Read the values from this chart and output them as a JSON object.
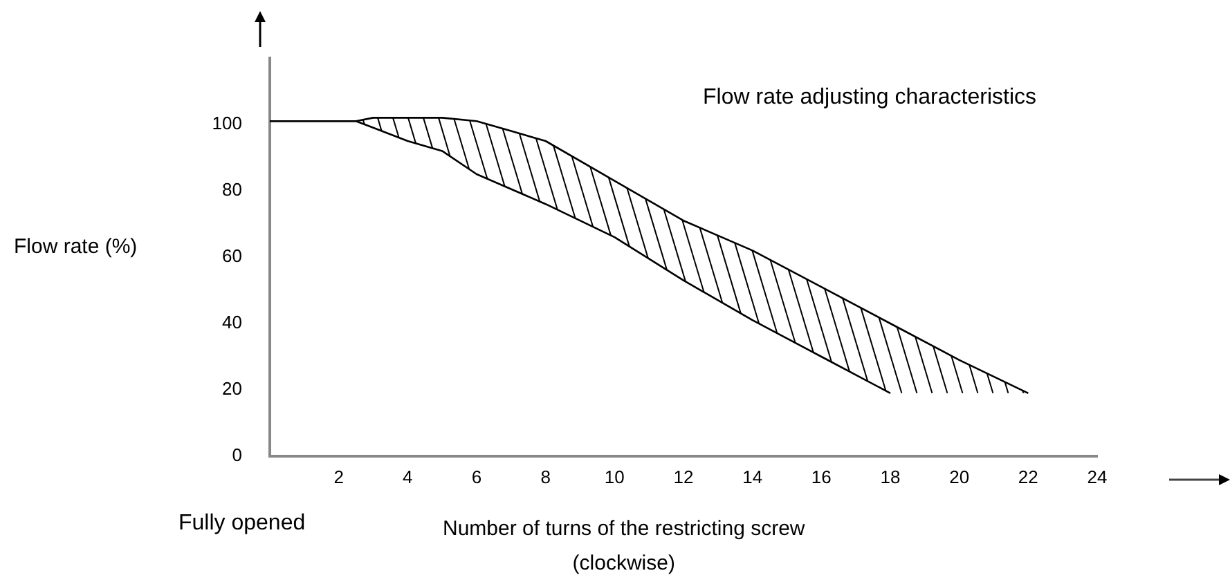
{
  "chart_data": {
    "type": "line",
    "title": "Flow rate adjusting characteristics",
    "xlabel": "Number of turns of the restricting screw\n(clockwise)",
    "ylabel": "Flow rate (%)",
    "annotations": [
      "Fully opened"
    ],
    "xlim": [
      0,
      24
    ],
    "xticks": [
      2,
      4,
      6,
      8,
      10,
      12,
      14,
      16,
      18,
      20,
      22,
      24
    ],
    "ylim": [
      0,
      120
    ],
    "yticks": [
      0,
      20,
      40,
      60,
      80,
      100
    ],
    "grid": false,
    "marker": "none",
    "line_style": "solid",
    "series": [
      {
        "type": "line",
        "color": "#000000",
        "x": [
          0,
          2.5,
          3,
          4,
          5,
          6,
          7,
          8,
          10,
          12,
          14,
          16,
          18,
          20,
          22
        ],
        "values": [
          101,
          101,
          102,
          102,
          102,
          101,
          98,
          95,
          83,
          71,
          62,
          51,
          40,
          29,
          19
        ]
      },
      {
        "type": "line",
        "color": "#000000",
        "x": [
          0,
          2.5,
          3,
          4,
          5,
          6,
          8,
          10,
          12,
          14,
          16,
          18
        ],
        "values": [
          101,
          101,
          99,
          95,
          92,
          85,
          76,
          66,
          53,
          41,
          30,
          19
        ]
      }
    ]
  }
}
